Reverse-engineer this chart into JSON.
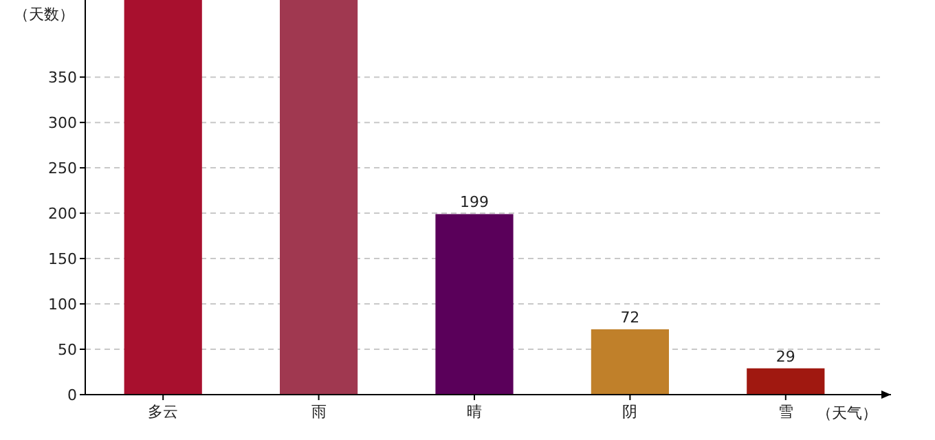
{
  "chart_data": {
    "type": "bar",
    "xlabel": "（天气）",
    "ylabel": "（天数）",
    "categories": [
      "多云",
      "雨",
      "晴",
      "阴",
      "雪"
    ],
    "values": [
      435,
      435,
      199,
      72,
      29
    ],
    "colors": [
      "#a8102e",
      "#a03850",
      "#5a005a",
      "#c0802a",
      "#a01810"
    ],
    "value_labels": [
      null,
      null,
      "199",
      "72",
      "29"
    ],
    "ylim": [
      0,
      435
    ],
    "yticks": [
      0,
      50,
      100,
      150,
      200,
      250,
      300,
      350
    ],
    "grid": "y"
  }
}
